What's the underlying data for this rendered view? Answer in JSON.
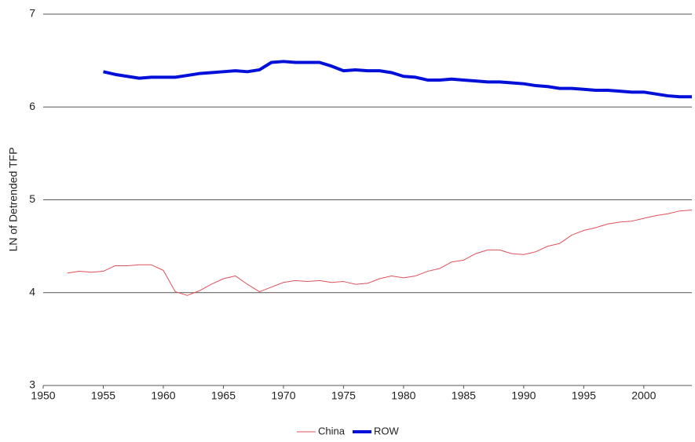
{
  "chart_data": {
    "type": "line",
    "y_label": "LN of Detrended TFP",
    "x": [
      1952,
      1953,
      1954,
      1955,
      1956,
      1957,
      1958,
      1959,
      1960,
      1961,
      1962,
      1963,
      1964,
      1965,
      1966,
      1967,
      1968,
      1969,
      1970,
      1971,
      1972,
      1973,
      1974,
      1975,
      1976,
      1977,
      1978,
      1979,
      1980,
      1981,
      1982,
      1983,
      1984,
      1985,
      1986,
      1987,
      1988,
      1989,
      1990,
      1991,
      1992,
      1993,
      1994,
      1995,
      1996,
      1997,
      1998,
      1999,
      2000,
      2001,
      2002,
      2003,
      2004
    ],
    "series": [
      {
        "name": "China",
        "color": "#e0505a",
        "width": 1,
        "values": [
          4.21,
          4.23,
          4.22,
          4.23,
          4.29,
          4.29,
          4.3,
          4.3,
          4.24,
          4.01,
          3.97,
          4.02,
          4.09,
          4.15,
          4.18,
          4.09,
          4.01,
          4.06,
          4.11,
          4.13,
          4.12,
          4.13,
          4.11,
          4.12,
          4.09,
          4.1,
          4.15,
          4.18,
          4.16,
          4.18,
          4.23,
          4.26,
          4.33,
          4.35,
          4.42,
          4.46,
          4.46,
          4.42,
          4.41,
          4.44,
          4.5,
          4.53,
          4.62,
          4.67,
          4.7,
          4.74,
          4.76,
          4.77,
          4.8,
          4.83,
          4.85,
          4.88,
          4.89
        ]
      },
      {
        "name": "ROW",
        "color": "#0010d8",
        "width": 4,
        "values": [
          null,
          null,
          null,
          6.38,
          6.35,
          6.33,
          6.31,
          6.32,
          6.32,
          6.32,
          6.34,
          6.36,
          6.37,
          6.38,
          6.39,
          6.38,
          6.4,
          6.48,
          6.49,
          6.48,
          6.48,
          6.48,
          6.44,
          6.39,
          6.4,
          6.39,
          6.39,
          6.37,
          6.33,
          6.32,
          6.29,
          6.29,
          6.3,
          6.29,
          6.28,
          6.27,
          6.27,
          6.26,
          6.25,
          6.23,
          6.22,
          6.2,
          6.2,
          6.19,
          6.18,
          6.18,
          6.17,
          6.16,
          6.16,
          6.14,
          6.12,
          6.11,
          6.11
        ]
      }
    ],
    "xlim": [
      1950,
      2004
    ],
    "xticks": [
      1950,
      1955,
      1960,
      1965,
      1970,
      1975,
      1980,
      1985,
      1990,
      1995,
      2000
    ],
    "ylim": [
      3,
      7
    ],
    "yticks": [
      3,
      4,
      5,
      6,
      7
    ],
    "grid": true,
    "legend": "bottom"
  }
}
